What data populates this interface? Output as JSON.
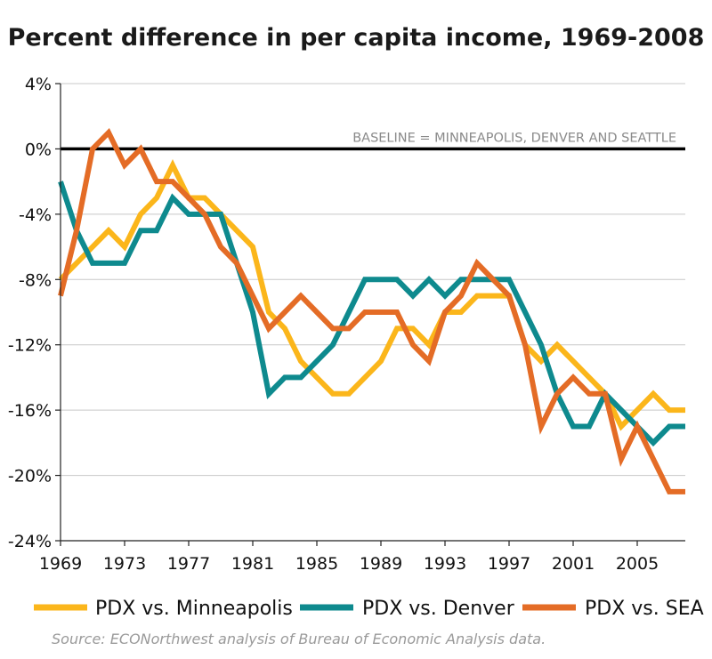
{
  "chart_data": {
    "type": "line",
    "title": "Percent difference in per capita income, 1969-2008",
    "baseline_label": "BASELINE = MINNEAPOLIS, DENVER AND SEATTLE",
    "source": "Source: ECONorthwest analysis of Bureau of Economic Analysis data.",
    "xlim": [
      1969,
      2008
    ],
    "ylim": [
      -24,
      4
    ],
    "x_ticks": [
      1969,
      1973,
      1977,
      1981,
      1985,
      1989,
      1993,
      1997,
      2001,
      2005
    ],
    "y_ticks": [
      {
        "value": 4,
        "label": "4%"
      },
      {
        "value": 0,
        "label": "0%"
      },
      {
        "value": -4,
        "label": "-4%"
      },
      {
        "value": -8,
        "label": "-8%"
      },
      {
        "value": -12,
        "label": "-12%"
      },
      {
        "value": -16,
        "label": "-16%"
      },
      {
        "value": -20,
        "label": "-20%"
      },
      {
        "value": -24,
        "label": "-24%"
      }
    ],
    "grid": true,
    "legend_position": "bottom",
    "x": [
      1969,
      1970,
      1971,
      1972,
      1973,
      1974,
      1975,
      1976,
      1977,
      1978,
      1979,
      1980,
      1981,
      1982,
      1983,
      1984,
      1985,
      1986,
      1987,
      1988,
      1989,
      1990,
      1991,
      1992,
      1993,
      1994,
      1995,
      1996,
      1997,
      1998,
      1999,
      2000,
      2001,
      2002,
      2003,
      2004,
      2005,
      2006,
      2007,
      2008
    ],
    "series": [
      {
        "name": "PDX vs. Minneapolis",
        "color": "#fbb61b",
        "values": [
          -8,
          -7,
          -6,
          -5,
          -6,
          -4,
          -3,
          -1,
          -3,
          -3,
          -4,
          -5,
          -6,
          -10,
          -11,
          -13,
          -14,
          -15,
          -15,
          -14,
          -13,
          -11,
          -11,
          -12,
          -10,
          -10,
          -9,
          -9,
          -9,
          -12,
          -13,
          -12,
          -13,
          -14,
          -15,
          -17,
          -16,
          -15,
          -16,
          -16
        ]
      },
      {
        "name": "PDX vs. Denver",
        "color": "#0e8a8e",
        "values": [
          -2,
          -5,
          -7,
          -7,
          -7,
          -5,
          -5,
          -3,
          -4,
          -4,
          -4,
          -7,
          -10,
          -15,
          -14,
          -14,
          -13,
          -12,
          -10,
          -8,
          -8,
          -8,
          -9,
          -8,
          -9,
          -8,
          -8,
          -8,
          -8,
          -10,
          -12,
          -15,
          -17,
          -17,
          -15,
          -16,
          -17,
          -18,
          -17,
          -17
        ]
      },
      {
        "name": "PDX vs. SEA",
        "color": "#e46c26",
        "values": [
          -9,
          -5,
          0,
          1,
          -1,
          0,
          -2,
          -2,
          -3,
          -4,
          -6,
          -7,
          -9,
          -11,
          -10,
          -9,
          -10,
          -11,
          -11,
          -10,
          -10,
          -10,
          -12,
          -13,
          -10,
          -9,
          -7,
          -8,
          -9,
          -12,
          -17,
          -15,
          -14,
          -15,
          -15,
          -19,
          -17,
          -19,
          -21,
          -21
        ]
      }
    ]
  }
}
